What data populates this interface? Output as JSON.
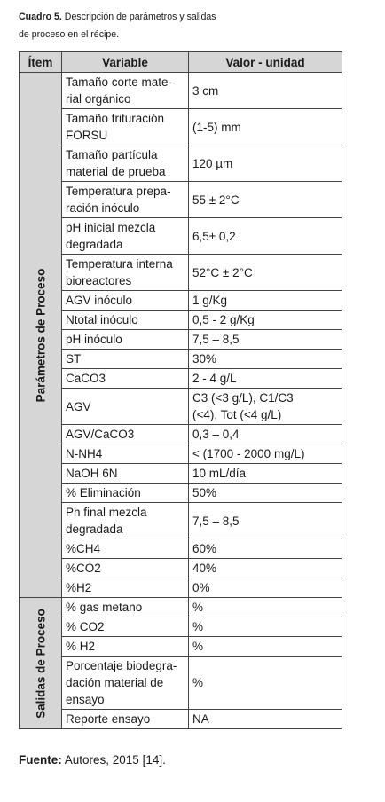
{
  "caption": {
    "label": "Cuadro 5.",
    "text": " Descripción de parámetros y salidas",
    "text2": "de proceso en el récipe."
  },
  "table": {
    "headers": [
      "Ítem",
      "Variable",
      "Valor - unidad"
    ],
    "group1_label": "Parámetros de Proceso",
    "group2_label": "Salidas de Proceso",
    "group1_rows": [
      [
        "Tamaño corte mate-\nrial orgánico",
        "3 cm"
      ],
      [
        "Tamaño trituración\nFORSU",
        "(1-5) mm"
      ],
      [
        "Tamaño partícula\nmaterial de prueba",
        "120 µm"
      ],
      [
        "Temperatura prepa-\nración inóculo",
        "55 ± 2°C"
      ],
      [
        "pH inicial mezcla\ndegradada",
        "6,5± 0,2"
      ],
      [
        "Temperatura interna\nbioreactores",
        "52°C ± 2°C"
      ],
      [
        "AGV inóculo",
        "1 g/Kg"
      ],
      [
        "Ntotal inóculo",
        "0,5 - 2 g/Kg"
      ],
      [
        "pH inóculo",
        "7,5 – 8,5"
      ],
      [
        "ST",
        "30%"
      ],
      [
        "CaCO3",
        "2 - 4 g/L"
      ],
      [
        "AGV",
        "C3 (<3 g/L), C1/C3\n(<4), Tot (<4 g/L)"
      ],
      [
        "AGV/CaCO3",
        "0,3 – 0,4"
      ],
      [
        "N-NH4",
        "< (1700 - 2000 mg/L)"
      ],
      [
        "NaOH 6N",
        "10 mL/día"
      ],
      [
        "% Eliminación",
        "50%"
      ],
      [
        "Ph final mezcla\ndegradada",
        "7,5 – 8,5"
      ],
      [
        "%CH4",
        "60%"
      ],
      [
        "%CO2",
        "40%"
      ],
      [
        "%H2",
        "0%"
      ]
    ],
    "group2_rows": [
      [
        "% gas metano",
        "%"
      ],
      [
        "% CO2",
        "%"
      ],
      [
        "% H2",
        "%"
      ],
      [
        "Porcentaje biodegra-\ndación material de\nensayo",
        "%"
      ],
      [
        "Reporte ensayo",
        "NA"
      ]
    ]
  },
  "footer": {
    "label": "Fuente:",
    "text": " Autores, 2015 [14]."
  }
}
